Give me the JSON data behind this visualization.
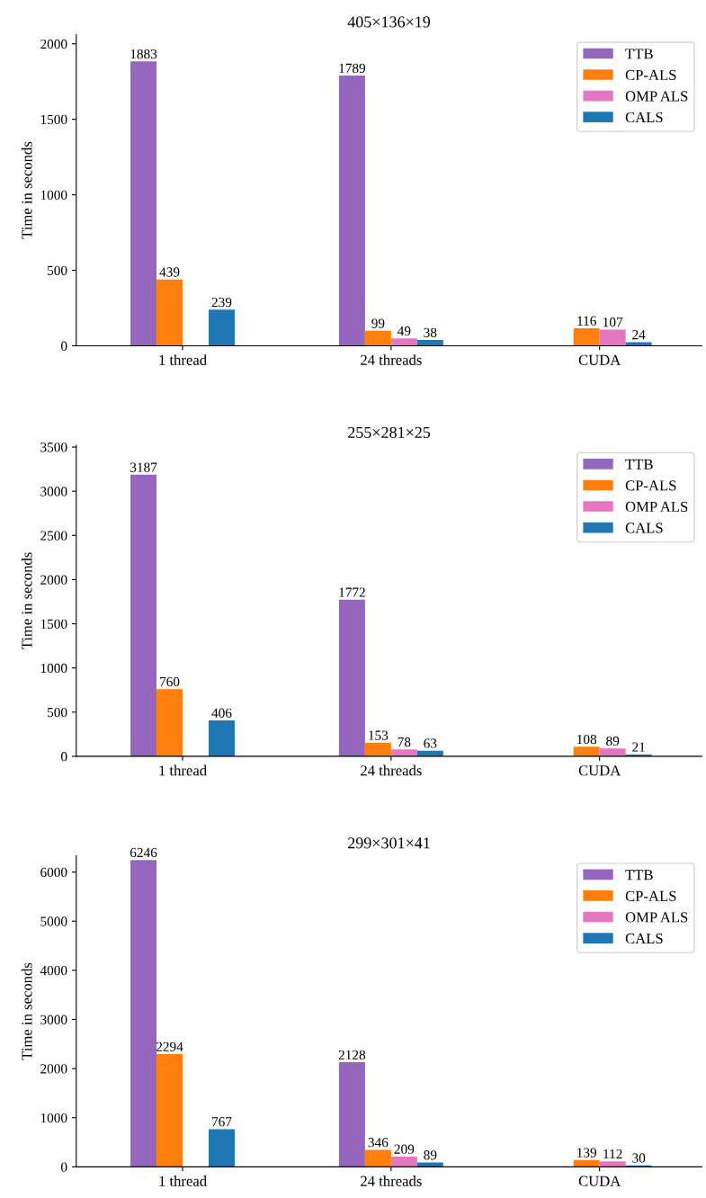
{
  "chart_data": [
    {
      "type": "bar",
      "title": "405×136×19",
      "ylabel": "Time in seconds",
      "categories": [
        "1 thread",
        "24 threads",
        "CUDA"
      ],
      "ylim": [
        0,
        2060
      ],
      "yticks": [
        0,
        500,
        1000,
        1500,
        2000
      ],
      "data_labels": true,
      "legend": "top right",
      "grid": false,
      "series": [
        {
          "name": "TTB",
          "color": "#9467bd",
          "values": [
            1883,
            1789,
            null
          ]
        },
        {
          "name": "CP-ALS",
          "color": "#ff7f0e",
          "values": [
            439,
            99,
            116
          ]
        },
        {
          "name": "OMP ALS",
          "color": "#e377c2",
          "values": [
            null,
            49,
            107
          ]
        },
        {
          "name": "CALS",
          "color": "#1f77b4",
          "values": [
            239,
            38,
            24
          ]
        }
      ]
    },
    {
      "type": "bar",
      "title": "255×281×25",
      "ylabel": "Time in seconds",
      "categories": [
        "1 thread",
        "24 threads",
        "CUDA"
      ],
      "ylim": [
        0,
        3520
      ],
      "yticks": [
        0,
        500,
        1000,
        1500,
        2000,
        2500,
        3000,
        3500
      ],
      "data_labels": true,
      "legend": "top right",
      "grid": false,
      "series": [
        {
          "name": "TTB",
          "color": "#9467bd",
          "values": [
            3187,
            1772,
            null
          ]
        },
        {
          "name": "CP-ALS",
          "color": "#ff7f0e",
          "values": [
            760,
            153,
            108
          ]
        },
        {
          "name": "OMP ALS",
          "color": "#e377c2",
          "values": [
            null,
            78,
            89
          ]
        },
        {
          "name": "CALS",
          "color": "#1f77b4",
          "values": [
            406,
            63,
            21
          ]
        }
      ]
    },
    {
      "type": "bar",
      "title": "299×301×41",
      "ylabel": "Time in seconds",
      "categories": [
        "1 thread",
        "24 threads",
        "CUDA"
      ],
      "ylim": [
        0,
        6330
      ],
      "yticks": [
        0,
        1000,
        2000,
        3000,
        4000,
        5000,
        6000
      ],
      "data_labels": true,
      "legend": "top right",
      "grid": false,
      "series": [
        {
          "name": "TTB",
          "color": "#9467bd",
          "values": [
            6246,
            2128,
            null
          ]
        },
        {
          "name": "CP-ALS",
          "color": "#ff7f0e",
          "values": [
            2294,
            346,
            139
          ]
        },
        {
          "name": "OMP ALS",
          "color": "#e377c2",
          "values": [
            null,
            209,
            112
          ]
        },
        {
          "name": "CALS",
          "color": "#1f77b4",
          "values": [
            767,
            89,
            30
          ]
        }
      ]
    }
  ]
}
